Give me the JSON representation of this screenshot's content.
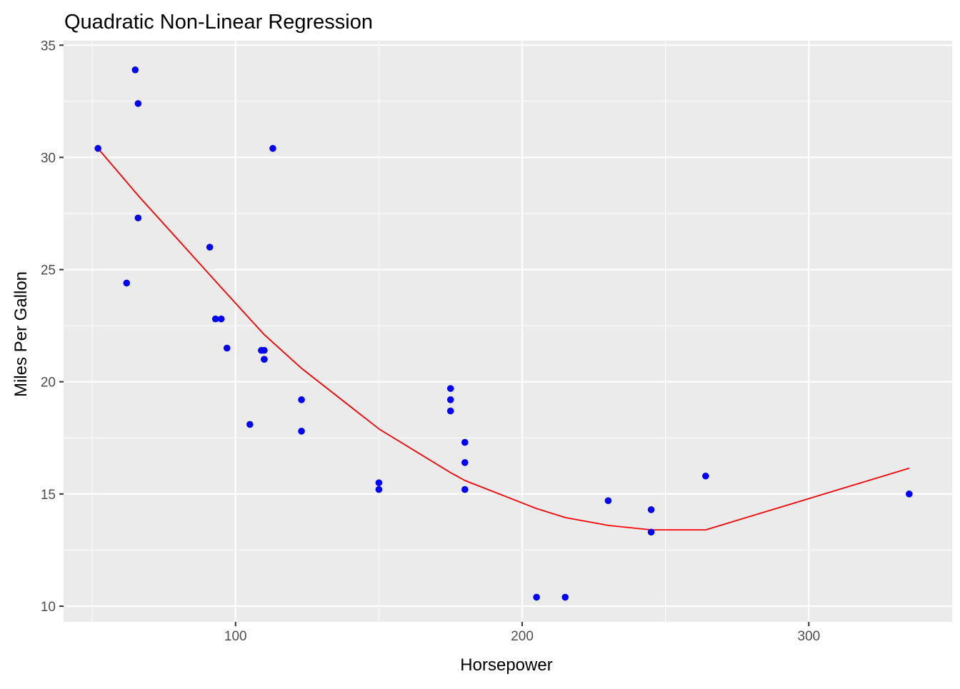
{
  "chart_data": {
    "type": "scatter",
    "title": "Quadratic Non-Linear Regression",
    "xlabel": "Horsepower",
    "ylabel": "Miles Per Gallon",
    "xlim": [
      40,
      350
    ],
    "ylim": [
      9.3,
      35.2
    ],
    "x_ticks": [
      100,
      200,
      300
    ],
    "y_ticks": [
      10,
      15,
      20,
      25,
      30,
      35
    ],
    "x_minor_ticks": [
      50,
      150,
      250
    ],
    "y_minor_ticks": [
      12.5,
      17.5,
      22.5,
      27.5,
      32.5
    ],
    "grid": true,
    "legend": "none",
    "panel_background": "#EBEBEB",
    "grid_color": "#FFFFFF",
    "series": [
      {
        "type": "scatter",
        "color": "#0000FF",
        "points": [
          {
            "x": 110,
            "y": 21.0
          },
          {
            "x": 110,
            "y": 21.0
          },
          {
            "x": 93,
            "y": 22.8
          },
          {
            "x": 110,
            "y": 21.4
          },
          {
            "x": 175,
            "y": 18.7
          },
          {
            "x": 105,
            "y": 18.1
          },
          {
            "x": 245,
            "y": 14.3
          },
          {
            "x": 62,
            "y": 24.4
          },
          {
            "x": 95,
            "y": 22.8
          },
          {
            "x": 123,
            "y": 19.2
          },
          {
            "x": 123,
            "y": 17.8
          },
          {
            "x": 180,
            "y": 16.4
          },
          {
            "x": 180,
            "y": 17.3
          },
          {
            "x": 180,
            "y": 15.2
          },
          {
            "x": 205,
            "y": 10.4
          },
          {
            "x": 215,
            "y": 10.4
          },
          {
            "x": 230,
            "y": 14.7
          },
          {
            "x": 66,
            "y": 32.4
          },
          {
            "x": 52,
            "y": 30.4
          },
          {
            "x": 65,
            "y": 33.9
          },
          {
            "x": 97,
            "y": 21.5
          },
          {
            "x": 150,
            "y": 15.5
          },
          {
            "x": 150,
            "y": 15.2
          },
          {
            "x": 245,
            "y": 13.3
          },
          {
            "x": 175,
            "y": 19.2
          },
          {
            "x": 66,
            "y": 27.3
          },
          {
            "x": 91,
            "y": 26.0
          },
          {
            "x": 113,
            "y": 30.4
          },
          {
            "x": 264,
            "y": 15.8
          },
          {
            "x": 175,
            "y": 19.7
          },
          {
            "x": 335,
            "y": 15.0
          },
          {
            "x": 109,
            "y": 21.4
          }
        ]
      },
      {
        "type": "line",
        "color": "#FF0000",
        "points": [
          {
            "x": 52,
            "y": 30.4
          },
          {
            "x": 66,
            "y": 28.3
          },
          {
            "x": 95,
            "y": 24.2
          },
          {
            "x": 110,
            "y": 22.1
          },
          {
            "x": 123,
            "y": 20.6
          },
          {
            "x": 150,
            "y": 17.9
          },
          {
            "x": 175,
            "y": 15.95
          },
          {
            "x": 180,
            "y": 15.6
          },
          {
            "x": 205,
            "y": 14.35
          },
          {
            "x": 215,
            "y": 13.95
          },
          {
            "x": 230,
            "y": 13.6
          },
          {
            "x": 245,
            "y": 13.4
          },
          {
            "x": 264,
            "y": 13.4
          },
          {
            "x": 335,
            "y": 16.15
          }
        ]
      }
    ]
  }
}
